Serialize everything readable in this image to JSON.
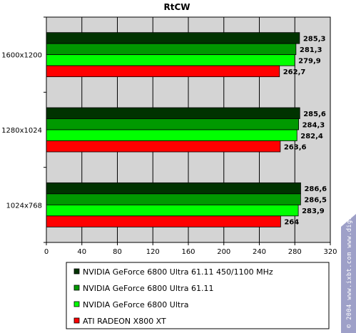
{
  "chart_data": {
    "type": "bar",
    "orientation": "horizontal",
    "title": "RtCW",
    "categories": [
      "1600x1200",
      "1280x1024",
      "1024x768"
    ],
    "series": [
      {
        "name": "NVIDIA GeForce 6800 Ultra 61.11 450/1100 MHz",
        "color": "#003300",
        "values": [
          285.3,
          285.6,
          286.6
        ],
        "labels": [
          "285,3",
          "285,6",
          "286,6"
        ]
      },
      {
        "name": "NVIDIA GeForce 6800 Ultra 61.11",
        "color": "#009900",
        "values": [
          281.3,
          284.3,
          286.5
        ],
        "labels": [
          "281,3",
          "284,3",
          "286,5"
        ]
      },
      {
        "name": "NVIDIA GeForce 6800 Ultra",
        "color": "#00ff00",
        "values": [
          279.9,
          282.4,
          283.9
        ],
        "labels": [
          "279,9",
          "282,4",
          "283,9"
        ]
      },
      {
        "name": "ATI RADEON X800 XT",
        "color": "#ff0000",
        "values": [
          262.7,
          263.6,
          264
        ],
        "labels": [
          "262,7",
          "263,6",
          "264"
        ]
      }
    ],
    "xlim": [
      0,
      320
    ],
    "xticks": [
      "0",
      "40",
      "80",
      "120",
      "160",
      "200",
      "240",
      "280",
      "320"
    ],
    "grid": true,
    "legend_position": "bottom"
  },
  "watermark": "© 2004 www.ixbt.com   www.digit-life.com",
  "colors": {
    "plot_background": "#d4d4d4",
    "grid": "#000000",
    "watermark_bg": "#9ea0c8"
  }
}
